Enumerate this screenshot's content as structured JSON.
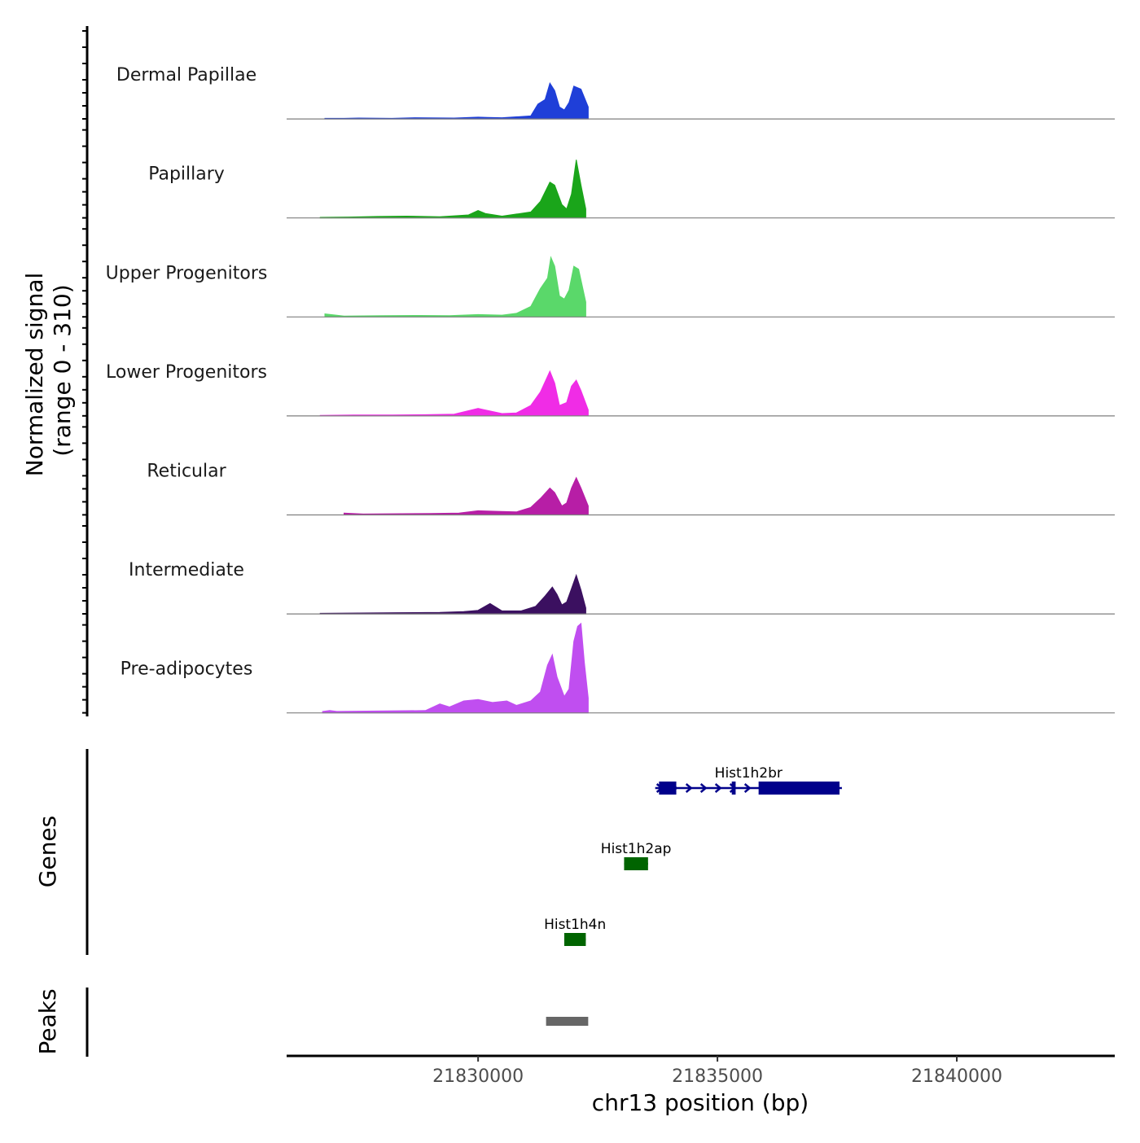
{
  "chart_data": {
    "type": "area",
    "title": "",
    "xlabel": "chr13 position (bp)",
    "ylabel": "Normalized signal",
    "ylabel_range": "(range 0 - 310)",
    "ylim": [
      0,
      310
    ],
    "xlim": [
      21826000,
      21843300
    ],
    "x_ticks": [
      21830000,
      21835000,
      21840000
    ],
    "x_tick_labels": [
      "21830000",
      "21835000",
      "21840000"
    ],
    "series": [
      {
        "name": "Dermal Papillae",
        "color": "#1f3fd8",
        "values": [
          [
            21826800,
            2
          ],
          [
            21827200,
            2
          ],
          [
            21827500,
            3
          ],
          [
            21828200,
            2
          ],
          [
            21828700,
            4
          ],
          [
            21829500,
            3
          ],
          [
            21830000,
            6
          ],
          [
            21830200,
            5
          ],
          [
            21830500,
            4
          ],
          [
            21831100,
            10
          ],
          [
            21831250,
            50
          ],
          [
            21831400,
            65
          ],
          [
            21831500,
            120
          ],
          [
            21831600,
            95
          ],
          [
            21831700,
            40
          ],
          [
            21831800,
            30
          ],
          [
            21831900,
            55
          ],
          [
            21832000,
            110
          ],
          [
            21832150,
            100
          ],
          [
            21832300,
            40
          ]
        ]
      },
      {
        "name": "Papillary",
        "color": "#1aa51a",
        "values": [
          [
            21826700,
            2
          ],
          [
            21827300,
            3
          ],
          [
            21827900,
            5
          ],
          [
            21828500,
            6
          ],
          [
            21829200,
            4
          ],
          [
            21829800,
            10
          ],
          [
            21830000,
            25
          ],
          [
            21830150,
            15
          ],
          [
            21830500,
            6
          ],
          [
            21831100,
            20
          ],
          [
            21831300,
            55
          ],
          [
            21831500,
            120
          ],
          [
            21831600,
            110
          ],
          [
            21831750,
            45
          ],
          [
            21831850,
            30
          ],
          [
            21831950,
            80
          ],
          [
            21832050,
            195
          ],
          [
            21832150,
            110
          ],
          [
            21832250,
            30
          ]
        ]
      },
      {
        "name": "Upper Progenitors",
        "color": "#5ad86a",
        "values": [
          [
            21826800,
            10
          ],
          [
            21827200,
            3
          ],
          [
            21828000,
            4
          ],
          [
            21828800,
            5
          ],
          [
            21829400,
            4
          ],
          [
            21830000,
            8
          ],
          [
            21830500,
            6
          ],
          [
            21830800,
            12
          ],
          [
            21831100,
            35
          ],
          [
            21831300,
            95
          ],
          [
            21831450,
            130
          ],
          [
            21831520,
            200
          ],
          [
            21831600,
            170
          ],
          [
            21831700,
            70
          ],
          [
            21831800,
            60
          ],
          [
            21831900,
            90
          ],
          [
            21832000,
            170
          ],
          [
            21832100,
            160
          ],
          [
            21832250,
            50
          ]
        ]
      },
      {
        "name": "Lower Progenitors",
        "color": "#f02ce6",
        "values": [
          [
            21826700,
            2
          ],
          [
            21827400,
            3
          ],
          [
            21828200,
            3
          ],
          [
            21828900,
            4
          ],
          [
            21829500,
            6
          ],
          [
            21830000,
            25
          ],
          [
            21830150,
            20
          ],
          [
            21830500,
            8
          ],
          [
            21830800,
            10
          ],
          [
            21831100,
            35
          ],
          [
            21831300,
            80
          ],
          [
            21831500,
            150
          ],
          [
            21831600,
            110
          ],
          [
            21831700,
            35
          ],
          [
            21831850,
            45
          ],
          [
            21831950,
            100
          ],
          [
            21832050,
            120
          ],
          [
            21832150,
            85
          ],
          [
            21832300,
            20
          ]
        ]
      },
      {
        "name": "Reticular",
        "color": "#b71ea6",
        "values": [
          [
            21827200,
            6
          ],
          [
            21827600,
            3
          ],
          [
            21828400,
            4
          ],
          [
            21829000,
            5
          ],
          [
            21829600,
            6
          ],
          [
            21830000,
            14
          ],
          [
            21830400,
            12
          ],
          [
            21830800,
            10
          ],
          [
            21831100,
            25
          ],
          [
            21831300,
            55
          ],
          [
            21831500,
            90
          ],
          [
            21831600,
            75
          ],
          [
            21831750,
            30
          ],
          [
            21831850,
            40
          ],
          [
            21831950,
            90
          ],
          [
            21832050,
            125
          ],
          [
            21832150,
            90
          ],
          [
            21832300,
            30
          ]
        ]
      },
      {
        "name": "Intermediate",
        "color": "#3b1060",
        "values": [
          [
            21826700,
            2
          ],
          [
            21827500,
            3
          ],
          [
            21828300,
            4
          ],
          [
            21829200,
            5
          ],
          [
            21829700,
            8
          ],
          [
            21830000,
            12
          ],
          [
            21830250,
            35
          ],
          [
            21830500,
            10
          ],
          [
            21830900,
            10
          ],
          [
            21831200,
            25
          ],
          [
            21831400,
            60
          ],
          [
            21831550,
            90
          ],
          [
            21831650,
            65
          ],
          [
            21831750,
            30
          ],
          [
            21831850,
            40
          ],
          [
            21831950,
            85
          ],
          [
            21832050,
            130
          ],
          [
            21832150,
            80
          ],
          [
            21832250,
            20
          ]
        ]
      },
      {
        "name": "Pre-adipocytes",
        "color": "#c04ef0",
        "values": [
          [
            21826750,
            5
          ],
          [
            21826900,
            8
          ],
          [
            21827050,
            5
          ],
          [
            21828900,
            8
          ],
          [
            21829200,
            30
          ],
          [
            21829400,
            20
          ],
          [
            21829700,
            40
          ],
          [
            21830000,
            45
          ],
          [
            21830300,
            35
          ],
          [
            21830600,
            40
          ],
          [
            21830800,
            25
          ],
          [
            21831100,
            40
          ],
          [
            21831300,
            70
          ],
          [
            21831450,
            160
          ],
          [
            21831550,
            195
          ],
          [
            21831650,
            120
          ],
          [
            21831800,
            55
          ],
          [
            21831900,
            80
          ],
          [
            21832000,
            240
          ],
          [
            21832080,
            290
          ],
          [
            21832150,
            300
          ],
          [
            21832220,
            170
          ],
          [
            21832300,
            50
          ]
        ]
      }
    ],
    "genes": [
      {
        "name": "Hist1h2br",
        "start": 21833700,
        "end": 21837600,
        "strand": "+",
        "color": "#00008b",
        "exons": [
          [
            21833780,
            21834140
          ],
          [
            21835300,
            21835380
          ],
          [
            21835860,
            21837550
          ]
        ]
      },
      {
        "name": "Hist1h2ap",
        "start": 21833050,
        "end": 21833550,
        "strand": "-",
        "color": "#006400",
        "exons": [
          [
            21833050,
            21833550
          ]
        ]
      },
      {
        "name": "Hist1h4n",
        "start": 21831800,
        "end": 21832250,
        "strand": "-",
        "color": "#006400",
        "exons": [
          [
            21831800,
            21832250
          ]
        ]
      }
    ],
    "genes_label": "Genes",
    "peaks": [
      [
        21831420,
        21832300
      ]
    ],
    "peaks_color": "#666666",
    "peaks_label": "Peaks"
  }
}
